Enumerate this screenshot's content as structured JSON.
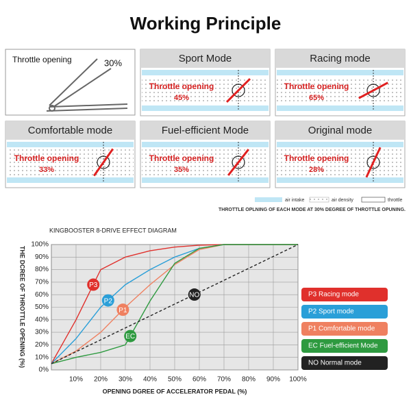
{
  "header": {
    "title": "Working Principle"
  },
  "intro_panel": {
    "label": "Throttle opening",
    "value": "30%"
  },
  "panels": [
    {
      "title": "Sport Mode",
      "label": "Throttle opening",
      "value": "45%"
    },
    {
      "title": "Racing mode",
      "label": "Throttle opening",
      "value": "65%"
    },
    {
      "title": "Comfortable mode",
      "label": "Throttle opening",
      "value": "33%"
    },
    {
      "title": "Fuel-efficient Mode",
      "label": "Throttle opening",
      "value": "35%"
    },
    {
      "title": "Original mode",
      "label": "Throttle opening",
      "value": "28%"
    }
  ],
  "key": {
    "items": [
      "air intake",
      "air density",
      "throttle"
    ],
    "caption": "THROTTLE OPLNING OF EACH MODE AT 30% DEGREE OF THROTTLE OPUNING."
  },
  "chart_data": {
    "type": "line",
    "title": "KINGBOOSTER 8-DRIVE EFFECT DIAGRAM",
    "x_label": "OPENING DGREE OF ACCELERATOR PEDAL (%)",
    "y_label": "THE DCREE OF THROTTLE OPENING (%)",
    "x": [
      0,
      10,
      20,
      30,
      40,
      50,
      60,
      70,
      80,
      90,
      100
    ],
    "xlim": [
      0,
      100
    ],
    "ylim": [
      0,
      100
    ],
    "xticks": [
      {
        "value": 10,
        "label": "10%"
      },
      {
        "value": 20,
        "label": "20%"
      },
      {
        "value": 30,
        "label": "30%"
      },
      {
        "value": 40,
        "label": "40%"
      },
      {
        "value": 50,
        "label": "50%"
      },
      {
        "value": 60,
        "label": "60%"
      },
      {
        "value": 70,
        "label": "70%"
      },
      {
        "value": 80,
        "label": "80%"
      },
      {
        "value": 90,
        "label": "90%"
      },
      {
        "value": 100,
        "label": "100%"
      }
    ],
    "yticks": [
      {
        "value": 0,
        "label": "0%"
      },
      {
        "value": 10,
        "label": "10%"
      },
      {
        "value": 20,
        "label": "20%"
      },
      {
        "value": 30,
        "label": "30%"
      },
      {
        "value": 40,
        "label": "40%"
      },
      {
        "value": 50,
        "label": "50%"
      },
      {
        "value": 60,
        "label": "60%"
      },
      {
        "value": 70,
        "label": "70%"
      },
      {
        "value": 80,
        "label": "80%"
      },
      {
        "value": 90,
        "label": "90%"
      },
      {
        "value": 100,
        "label": "100%"
      }
    ],
    "grid": true,
    "series": [
      {
        "name": "P3 Racing mode",
        "marker": "P3",
        "marker_x": 17,
        "color": "#e0302c",
        "values": [
          5,
          40,
          80,
          90,
          95,
          98,
          99.5,
          100,
          100,
          100,
          100
        ]
      },
      {
        "name": "P2 Sport mode",
        "marker": "P2",
        "marker_x": 23,
        "color": "#2a9fd8",
        "values": [
          5,
          25,
          50,
          68,
          80,
          90,
          97,
          100,
          100,
          100,
          100
        ]
      },
      {
        "name": "P1 Comfortable mode",
        "marker": "P1",
        "marker_x": 29,
        "color": "#ef8060",
        "values": [
          5,
          15,
          30,
          50,
          68,
          84,
          96,
          100,
          100,
          100,
          100
        ]
      },
      {
        "name": "EC Fuel-efficient Mode",
        "marker": "EC",
        "marker_x": 32,
        "color": "#2e9a40",
        "values": [
          5,
          10,
          14,
          20,
          55,
          85,
          97,
          100,
          100,
          100,
          100
        ]
      },
      {
        "name": "NO Normal mode",
        "marker": "NO",
        "marker_x": 58,
        "color": "#222222",
        "dashed": true,
        "values": [
          5,
          14.5,
          24,
          33.5,
          43,
          52.5,
          62,
          71.5,
          81,
          90.5,
          100
        ]
      }
    ]
  }
}
